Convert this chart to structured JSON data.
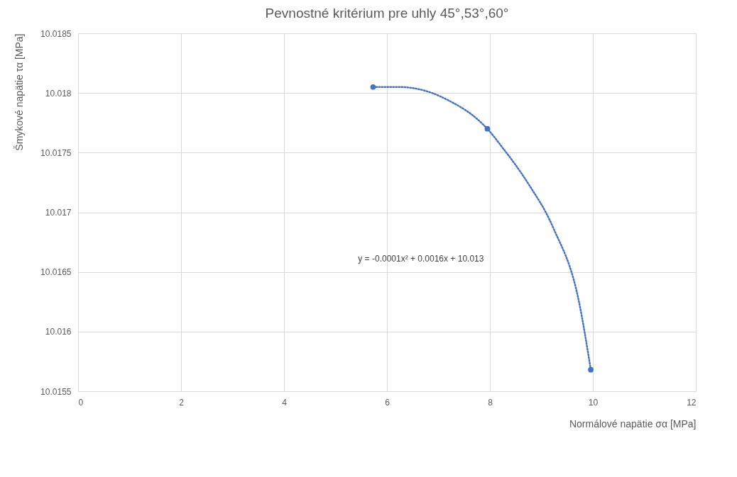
{
  "chart_data": {
    "type": "scatter",
    "title": "Pevnostné kritérium pre uhly 45°,53°,60°",
    "xlabel": "Normálové napätie σα [MPa]",
    "ylabel": "Šmykové napätie τα [MPa]",
    "xlim": [
      0,
      12
    ],
    "xticks": [
      0,
      2,
      4,
      6,
      8,
      10,
      12
    ],
    "ylim": [
      10.0155,
      10.0185
    ],
    "yticks": [
      10.0155,
      10.016,
      10.0165,
      10.017,
      10.0175,
      10.018,
      10.0185
    ],
    "grid": true,
    "series": [
      {
        "color": "#4472c4",
        "marker": "circle",
        "x": [
          5.73,
          7.95,
          9.96
        ],
        "values": [
          10.01805,
          10.0177,
          10.01568
        ]
      },
      {
        "type": "line",
        "color": "#4472c4",
        "line_style": "dotted",
        "marker": "none",
        "x": [
          5.73,
          6.23,
          6.73,
          7.23,
          7.73,
          7.95,
          8.23,
          8.73,
          9.23,
          9.73,
          9.96
        ],
        "values": [
          10.01805,
          10.01805,
          10.01802,
          10.01793,
          10.01779,
          10.0177,
          10.01755,
          10.01725,
          10.01687,
          10.01625,
          10.01568
        ]
      }
    ],
    "annotations": [
      "y = -0.0001x² + 0.0016x + 10.013"
    ]
  }
}
